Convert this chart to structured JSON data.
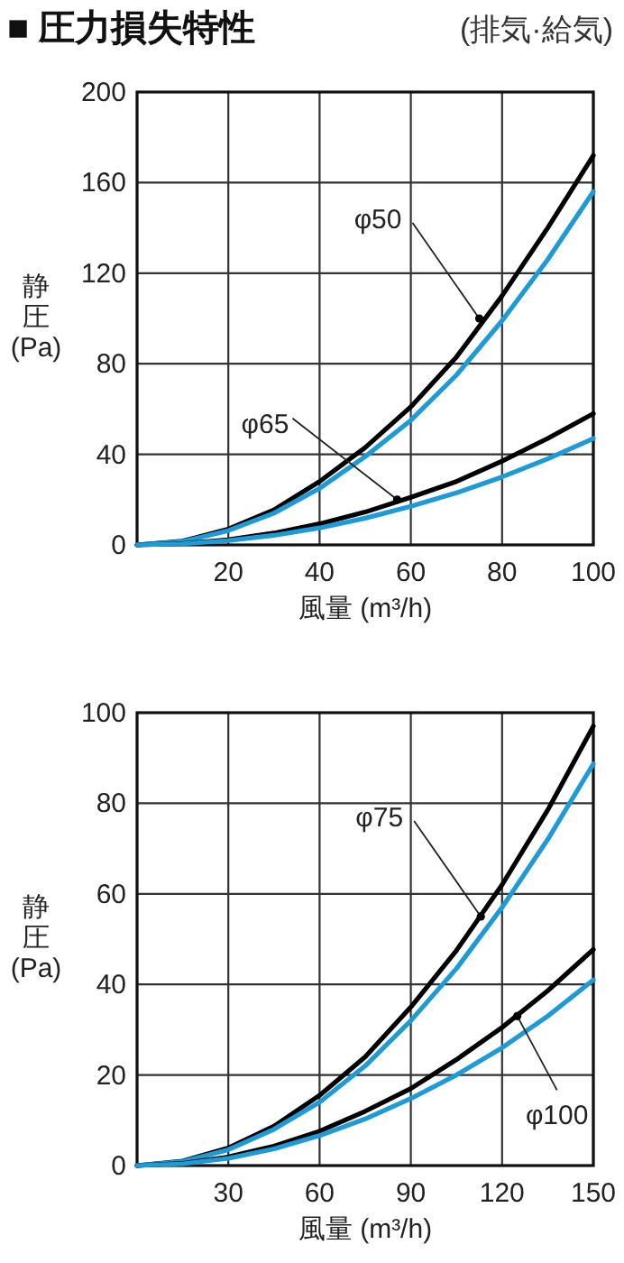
{
  "chart_data": [
    {
      "type": "line",
      "title": "■ 圧力損失特性",
      "subtitle": "(排気·給気)",
      "xlabel": "風量 (m³/h)",
      "ylabel": "静圧 (Pa)",
      "x": [
        0,
        10,
        20,
        30,
        40,
        50,
        60,
        70,
        80,
        90,
        100
      ],
      "xlim": [
        0,
        100
      ],
      "ylim": [
        0,
        200
      ],
      "xticks": [
        {
          "value": 0,
          "label": null
        },
        20,
        40,
        60,
        80,
        100
      ],
      "yticks": [
        0,
        40,
        80,
        120,
        160,
        200
      ],
      "grid": true,
      "marker": "none",
      "line_style": "solid",
      "series": [
        {
          "color": "#000000",
          "values": [
            0,
            1.7,
            7,
            15.5,
            28,
            43,
            61,
            83,
            110,
            140,
            172
          ]
        },
        {
          "color": "#1e9ad6",
          "values": [
            0,
            1.5,
            6.3,
            14,
            25,
            39,
            55,
            75,
            99,
            126,
            156
          ]
        },
        {
          "color": "#000000",
          "values": [
            0,
            0.6,
            2.3,
            5.2,
            9.3,
            14.5,
            21,
            28,
            37,
            47,
            58
          ]
        },
        {
          "color": "#1e9ad6",
          "values": [
            0,
            0.5,
            1.9,
            4.2,
            7.5,
            11.8,
            17,
            23,
            30,
            38,
            47
          ]
        }
      ],
      "annotations": [
        {
          "text": "φ50",
          "x": 75,
          "y": 100
        },
        {
          "text": "φ65",
          "x": 57,
          "y": 20
        }
      ]
    },
    {
      "type": "line",
      "xlabel": "風量 (m³/h)",
      "ylabel": "静圧 (Pa)",
      "x": [
        0,
        15,
        30,
        45,
        60,
        75,
        90,
        105,
        120,
        135,
        150
      ],
      "xlim": [
        0,
        150
      ],
      "ylim": [
        0,
        100
      ],
      "xticks": [
        {
          "value": 0,
          "label": null
        },
        30,
        60,
        90,
        120,
        150
      ],
      "yticks": [
        0,
        20,
        40,
        60,
        80,
        100
      ],
      "grid": true,
      "marker": "none",
      "line_style": "solid",
      "series": [
        {
          "color": "#000000",
          "values": [
            0,
            1,
            3.9,
            8.7,
            15.5,
            24,
            35,
            47.5,
            62,
            78.5,
            97
          ]
        },
        {
          "color": "#1e9ad6",
          "values": [
            0,
            0.9,
            3.5,
            8,
            14,
            22,
            32,
            43.5,
            57,
            72,
            88.7
          ]
        },
        {
          "color": "#000000",
          "values": [
            0,
            0.5,
            1.9,
            4.3,
            7.6,
            12,
            17,
            23.4,
            30.5,
            38.6,
            47.7
          ]
        },
        {
          "color": "#1e9ad6",
          "values": [
            0,
            0.4,
            1.6,
            3.7,
            6.6,
            10.3,
            14.8,
            20,
            26,
            33,
            41
          ]
        }
      ],
      "annotations": [
        {
          "text": "φ75",
          "x": 113,
          "y": 55
        },
        {
          "text": "φ100",
          "x": 125,
          "y": 33
        }
      ]
    }
  ]
}
